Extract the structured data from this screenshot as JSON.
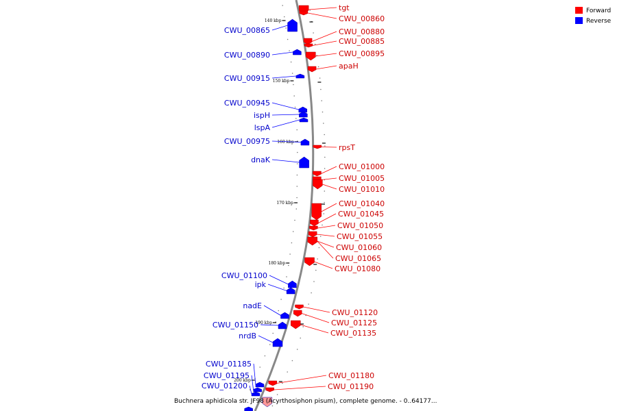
{
  "legend": {
    "forward_label": "Forward",
    "reverse_label": "Reverse",
    "forward_color": "#ff0000",
    "reverse_color": "#0000ff"
  },
  "caption": "Buchnera aphidicola str. JF98 (Acyrthosiphon pisum), complete genome. - 0..64177...",
  "backbone_color": "#888888",
  "scale_labels": [
    "140 kbp",
    "150 kbp",
    "160 kbp",
    "170 kbp",
    "180 kbp",
    "190 kbp",
    "200 kbp"
  ],
  "forward_genes": [
    "tgt",
    "CWU_00860",
    "CWU_00880",
    "CWU_00885",
    "CWU_00895",
    "apaH",
    "rpsT",
    "CWU_01000",
    "CWU_01005",
    "CWU_01010",
    "CWU_01040",
    "CWU_01045",
    "CWU_01050",
    "CWU_01055",
    "CWU_01060",
    "CWU_01065",
    "CWU_01080",
    "CWU_01120",
    "CWU_01125",
    "CWU_01135",
    "CWU_01180",
    "CWU_01190"
  ],
  "reverse_genes": [
    "CWU_00865",
    "CWU_00890",
    "CWU_00915",
    "CWU_00945",
    "ispH",
    "lspA",
    "CWU_00975",
    "dnaK",
    "CWU_01100",
    "ipk",
    "nadE",
    "CWU_01150",
    "nrdB",
    "CWU_01185",
    "CWU_01195",
    "CWU_01200"
  ]
}
